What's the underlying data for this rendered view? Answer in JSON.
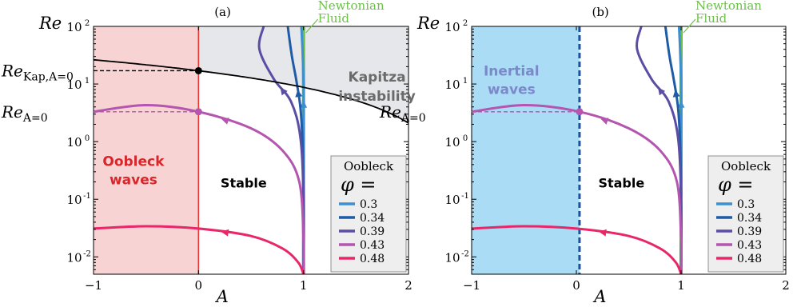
{
  "chart_data": [
    {
      "type": "line",
      "panel_label": "(a)",
      "xlabel": "A",
      "ylabel": "Re",
      "xlim": [
        -1,
        2
      ],
      "ylim": [
        0.005,
        100
      ],
      "yscale": "log",
      "x_ticks": [
        {
          "v": -1,
          "t": "−1"
        },
        {
          "v": 0,
          "t": "0"
        },
        {
          "v": 1,
          "t": "1"
        },
        {
          "v": 2,
          "t": "2"
        }
      ],
      "y_ticks": [
        {
          "v": 0.01,
          "t": "10",
          "e": "-2"
        },
        {
          "v": 0.1,
          "t": "10",
          "e": "-1"
        },
        {
          "v": 1,
          "t": "10",
          "e": "0"
        },
        {
          "v": 10,
          "t": "10",
          "e": "1"
        },
        {
          "v": 100,
          "t": "10",
          "e": "2"
        }
      ],
      "regions": [
        {
          "x": [
            -1,
            0
          ],
          "color": "#f8d3d3",
          "label_lines": [
            "Oobleck",
            "waves"
          ],
          "label_color": "#d9262b",
          "label_at": [
            -0.62,
            0.38
          ]
        }
      ],
      "vline": {
        "x": 0,
        "color": "#e8332e",
        "dashed": false
      },
      "kapitza": {
        "re_at_0": 17,
        "label_lines": [
          "Kapitza",
          "instability"
        ],
        "label_color": "#6b6b6b",
        "label_at": [
          1.7,
          11
        ],
        "fill": "#e6e7ea",
        "ylim_end": 2.1
      },
      "markers": [
        {
          "label": "Re",
          "sub": "Kap,A=0",
          "y": 17,
          "color": "#000000"
        },
        {
          "label": "Re",
          "sub": "A=0",
          "y": 3.3,
          "color": "#b455b0"
        }
      ],
      "stable_label": {
        "text": "Stable",
        "at": [
          0.43,
          0.16
        ]
      },
      "newtonian": {
        "x": 1,
        "color": "#6cc04a",
        "label_lines": [
          "Newtonian",
          "Fluid"
        ]
      },
      "legend": {
        "title": "Oobleck",
        "symbol": "φ =",
        "location": "bottom-right"
      },
      "series": [
        {
          "name": "0.3",
          "color": "#3d8fd1",
          "points": [
            [
              0.98,
              100
            ],
            [
              0.99,
              40
            ],
            [
              1,
              10
            ],
            [
              1,
              2
            ],
            [
              1,
              0.5
            ],
            [
              1,
              0.005
            ]
          ]
        },
        {
          "name": "0.34",
          "color": "#1f5ca8",
          "points": [
            [
              0.85,
              100
            ],
            [
              0.89,
              30
            ],
            [
              0.93,
              12
            ],
            [
              0.97,
              4
            ],
            [
              0.99,
              1
            ],
            [
              1,
              0.1
            ],
            [
              1,
              0.005
            ]
          ]
        },
        {
          "name": "0.39",
          "color": "#5a4da3",
          "points": [
            [
              0.62,
              100
            ],
            [
              0.58,
              40
            ],
            [
              0.72,
              12
            ],
            [
              0.88,
              5
            ],
            [
              0.97,
              1.2
            ],
            [
              1,
              0.1
            ],
            [
              1,
              0.005
            ]
          ]
        },
        {
          "name": "0.43",
          "color": "#b455b0",
          "points": [
            [
              -1,
              3.3
            ],
            [
              -0.5,
              4.3
            ],
            [
              0,
              3.3
            ],
            [
              0.5,
              1.7
            ],
            [
              0.8,
              0.7
            ],
            [
              0.96,
              0.2
            ],
            [
              1,
              0.02
            ],
            [
              1,
              0.005
            ]
          ]
        },
        {
          "name": "0.48",
          "color": "#e8266a",
          "points": [
            [
              -1,
              0.031
            ],
            [
              -0.5,
              0.034
            ],
            [
              0,
              0.031
            ],
            [
              0.5,
              0.023
            ],
            [
              0.8,
              0.014
            ],
            [
              0.95,
              0.008
            ],
            [
              1,
              0.005
            ]
          ]
        }
      ]
    },
    {
      "type": "line",
      "panel_label": "(b)",
      "xlabel": "A",
      "ylabel": "Re",
      "xlim": [
        -1,
        2
      ],
      "ylim": [
        0.005,
        100
      ],
      "yscale": "log",
      "x_ticks": [
        {
          "v": -1,
          "t": "−1"
        },
        {
          "v": 0,
          "t": "0"
        },
        {
          "v": 1,
          "t": "1"
        },
        {
          "v": 2,
          "t": "2"
        }
      ],
      "y_ticks": [
        {
          "v": 0.01,
          "t": "10",
          "e": "-2"
        },
        {
          "v": 0.1,
          "t": "10",
          "e": "-1"
        },
        {
          "v": 1,
          "t": "10",
          "e": "0"
        },
        {
          "v": 10,
          "t": "10",
          "e": "1"
        },
        {
          "v": 100,
          "t": "10",
          "e": "2"
        }
      ],
      "regions": [
        {
          "x": [
            -1,
            0.03
          ],
          "color": "#aadcf5",
          "label_lines": [
            "Inertial",
            "waves"
          ],
          "label_color": "#7b88c9",
          "label_at": [
            -0.62,
            14
          ]
        }
      ],
      "vline": {
        "x": 0.03,
        "color": "#1f4fa0",
        "dashed": true
      },
      "markers": [
        {
          "label": "Re",
          "sub": "A=0",
          "y": 3.3,
          "color": "#b455b0"
        }
      ],
      "stable_label": {
        "text": "Stable",
        "at": [
          0.43,
          0.16
        ]
      },
      "newtonian": {
        "x": 1,
        "color": "#6cc04a",
        "label_lines": [
          "Newtonian",
          "Fluid"
        ]
      },
      "legend": {
        "title": "Oobleck",
        "symbol": "φ =",
        "location": "bottom-right"
      },
      "series": [
        {
          "name": "0.3",
          "color": "#3d8fd1",
          "points": [
            [
              0.98,
              100
            ],
            [
              0.99,
              40
            ],
            [
              1,
              10
            ],
            [
              1,
              2
            ],
            [
              1,
              0.5
            ],
            [
              1,
              0.005
            ]
          ]
        },
        {
          "name": "0.34",
          "color": "#1f5ca8",
          "points": [
            [
              0.85,
              100
            ],
            [
              0.89,
              30
            ],
            [
              0.93,
              12
            ],
            [
              0.97,
              4
            ],
            [
              0.99,
              1
            ],
            [
              1,
              0.1
            ],
            [
              1,
              0.005
            ]
          ]
        },
        {
          "name": "0.39",
          "color": "#5a4da3",
          "points": [
            [
              0.62,
              100
            ],
            [
              0.58,
              40
            ],
            [
              0.72,
              12
            ],
            [
              0.88,
              5
            ],
            [
              0.97,
              1.2
            ],
            [
              1,
              0.1
            ],
            [
              1,
              0.005
            ]
          ]
        },
        {
          "name": "0.43",
          "color": "#b455b0",
          "points": [
            [
              -1,
              3.3
            ],
            [
              -0.5,
              4.3
            ],
            [
              0.03,
              3.3
            ],
            [
              0.5,
              1.7
            ],
            [
              0.8,
              0.7
            ],
            [
              0.96,
              0.2
            ],
            [
              1,
              0.02
            ],
            [
              1,
              0.005
            ]
          ]
        },
        {
          "name": "0.48",
          "color": "#e8266a",
          "points": [
            [
              -1,
              0.031
            ],
            [
              -0.5,
              0.034
            ],
            [
              0,
              0.031
            ],
            [
              0.5,
              0.023
            ],
            [
              0.8,
              0.014
            ],
            [
              0.95,
              0.008
            ],
            [
              1,
              0.005
            ]
          ]
        }
      ]
    }
  ]
}
